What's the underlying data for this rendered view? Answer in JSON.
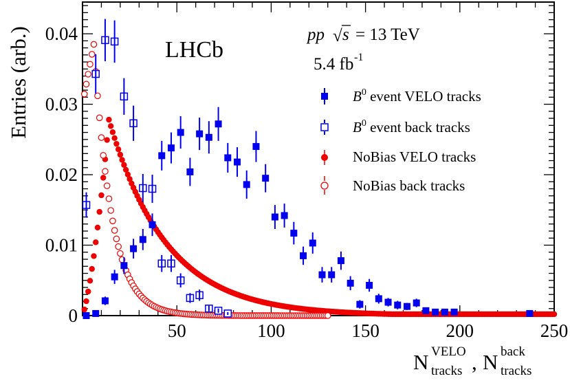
{
  "chart_data": {
    "type": "scatter",
    "xlim": [
      0,
      250
    ],
    "ylim": [
      0,
      0.0445
    ],
    "xticks": [
      "50",
      "100",
      "150",
      "200",
      "250"
    ],
    "yticks": [
      "0",
      "0.01",
      "0.02",
      "0.03",
      "0.04"
    ],
    "ylabel": "Entries (arb.)",
    "xlabel": {
      "part1_main": "N",
      "part1_sup": "VELO",
      "part1_sub": "tracks",
      "separator": ",",
      "part2_main": "N",
      "part2_sup": "back",
      "part2_sub": "tracks"
    },
    "annotations": {
      "experiment": "LHCb",
      "collision_pp": "pp",
      "collision_sqrt": "√",
      "collision_s": "s",
      "collision_energy": "= 13 TeV",
      "luminosity": "5.4 fb",
      "luminosity_exp": "-1"
    },
    "legend_position": "top-right",
    "colors": {
      "blue": "#0000ee",
      "red": "#ee0000"
    },
    "series": [
      {
        "name": "B0 event VELO tracks",
        "legend_prefix": "B",
        "legend_sup": "0",
        "legend_suffix": " event VELO tracks",
        "marker": "filled-square",
        "color": "#0000ee",
        "points": [
          [
            2,
            0.0
          ],
          [
            7,
            0.0003
          ],
          [
            12,
            0.0021
          ],
          [
            17,
            0.0055
          ],
          [
            22,
            0.0071
          ],
          [
            27,
            0.0095
          ],
          [
            32,
            0.0108
          ],
          [
            37,
            0.0129
          ],
          [
            42,
            0.0227
          ],
          [
            47,
            0.0238
          ],
          [
            52,
            0.026
          ],
          [
            57,
            0.0204
          ],
          [
            62,
            0.0258
          ],
          [
            67,
            0.0253
          ],
          [
            72,
            0.0272
          ],
          [
            77,
            0.0224
          ],
          [
            82,
            0.0218
          ],
          [
            87,
            0.0186
          ],
          [
            92,
            0.024
          ],
          [
            97,
            0.0195
          ],
          [
            102,
            0.014
          ],
          [
            107,
            0.0142
          ],
          [
            112,
            0.0117
          ],
          [
            117,
            0.0085
          ],
          [
            122,
            0.0103
          ],
          [
            127,
            0.0058
          ],
          [
            132,
            0.0058
          ],
          [
            137,
            0.0078
          ],
          [
            142,
            0.0046
          ],
          [
            147,
            0.0016
          ],
          [
            152,
            0.0043
          ],
          [
            157,
            0.0024
          ],
          [
            162,
            0.0019
          ],
          [
            167,
            0.0015
          ],
          [
            172,
            0.0013
          ],
          [
            177,
            0.0018
          ],
          [
            182,
            0.0007
          ],
          [
            187,
            0.0005
          ],
          [
            192,
            0.0005
          ],
          [
            197,
            0.0005
          ],
          [
            237,
            0.0003
          ]
        ],
        "errors": [
          0,
          0.0003,
          0.0006,
          0.001,
          0.0012,
          0.0014,
          0.0015,
          0.0016,
          0.0021,
          0.0022,
          0.0023,
          0.002,
          0.0023,
          0.0023,
          0.0024,
          0.0021,
          0.0021,
          0.002,
          0.0022,
          0.002,
          0.0017,
          0.0017,
          0.0016,
          0.0013,
          0.0015,
          0.0011,
          0.0011,
          0.0013,
          0.001,
          0.0006,
          0.0009,
          0.0007,
          0.0006,
          0.0006,
          0.0005,
          0.0006,
          0.0004,
          0.0003,
          0.0003,
          0.0003,
          0.0003
        ]
      },
      {
        "name": "B0 event back tracks",
        "legend_prefix": "B",
        "legend_sup": "0",
        "legend_suffix": " event back tracks",
        "marker": "open-square",
        "color": "#0000ee",
        "points": [
          [
            2,
            0.0157
          ],
          [
            7,
            0.0343
          ],
          [
            12,
            0.0391
          ],
          [
            17,
            0.0389
          ],
          [
            22,
            0.0311
          ],
          [
            27,
            0.0273
          ],
          [
            32,
            0.0181
          ],
          [
            37,
            0.018
          ],
          [
            42,
            0.0074
          ],
          [
            47,
            0.0074
          ],
          [
            52,
            0.005
          ],
          [
            57,
            0.0025
          ],
          [
            62,
            0.0029
          ],
          [
            67,
            0.001
          ],
          [
            72,
            0.0007
          ],
          [
            77,
            0.0003
          ]
        ],
        "errors": [
          0.0018,
          0.0028,
          0.003,
          0.003,
          0.0026,
          0.0025,
          0.002,
          0.002,
          0.0012,
          0.0012,
          0.001,
          0.0007,
          0.0008,
          0.0004,
          0.0003,
          0.0002
        ]
      },
      {
        "name": "NoBias VELO tracks",
        "marker": "filled-circle",
        "color": "#ee0000",
        "peak_x": 14,
        "peak_y": 0.0278,
        "decay": 30.5
      },
      {
        "name": "NoBias back tracks",
        "marker": "open-circle",
        "color": "#ee0000",
        "peak_x": 6,
        "peak_y": 0.0385,
        "decay": 9.5,
        "end_x": 130
      }
    ]
  }
}
